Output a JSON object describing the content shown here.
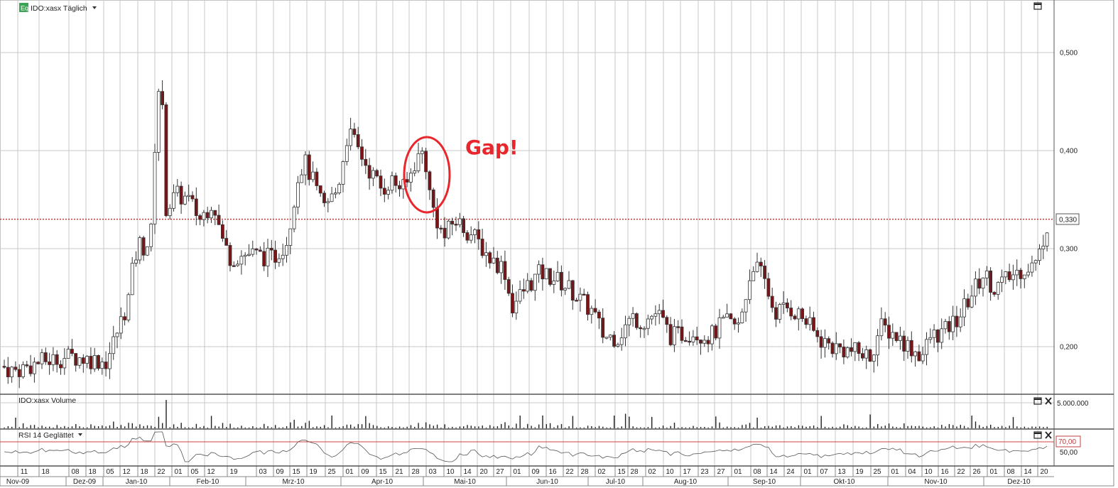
{
  "price_panel": {
    "title": "IDO:xasx Täglich",
    "symbol_badge": "Eq",
    "last_price_label": "0,330",
    "annotation": "Gap!",
    "icons": [
      "chart-type-dropdown-icon",
      "maximize-icon"
    ]
  },
  "volume_panel": {
    "title": "IDO:xasx Volume",
    "icons": [
      "maximize-icon",
      "close-icon"
    ]
  },
  "rsi_panel": {
    "title": "RSI 14 Geglättet",
    "level_label": "70,00",
    "icons": [
      "maximize-icon",
      "close-icon"
    ]
  },
  "colors": {
    "up_candle": "#ffffff",
    "down_candle": "#7a1416",
    "grid": "#c8c8c8",
    "last_price_line": "#c0393b",
    "gap_marker": "#e8262b",
    "rsi_level": "#d04040"
  },
  "chart_data": [
    {
      "type": "candlestick",
      "title": "IDO:xasx Täglich",
      "ylim": [
        0.17,
        0.55
      ],
      "y_ticks": [
        "0,500",
        "0,400",
        "0,300",
        "0,200"
      ],
      "y_tick_values": [
        0.5,
        0.4,
        0.3,
        0.2
      ],
      "last_price": 0.33,
      "x_day_labels": [
        "11",
        "18",
        "08",
        "18",
        "05",
        "12",
        "18",
        "22",
        "01",
        "05",
        "12",
        "19",
        "03",
        "09",
        "15",
        "19",
        "25",
        "01",
        "09",
        "15",
        "21",
        "28",
        "03",
        "10",
        "14",
        "20",
        "27",
        "01",
        "09",
        "16",
        "22",
        "28",
        "02",
        "15",
        "28",
        "02",
        "10",
        "17",
        "23",
        "27",
        "01",
        "08",
        "14",
        "24",
        "01",
        "07",
        "13",
        "19",
        "25",
        "01",
        "04",
        "10",
        "16",
        "22",
        "26",
        "01",
        "08",
        "14",
        "20"
      ],
      "x_month_labels": [
        "Nov-09",
        "Dez-09",
        "Jan-10",
        "Feb-10",
        "Mrz-10",
        "Apr-10",
        "Mai-10",
        "Jun-10",
        "Jul-10",
        "Aug-10",
        "Sep-10",
        "Okt-10",
        "Nov-10",
        "Dez-10"
      ],
      "annotation": "Gap!",
      "grid": true
    },
    {
      "type": "bar",
      "title": "IDO:xasx Volume",
      "y_ticks": [
        "5.000.000"
      ],
      "y_tick_values": [
        5000000
      ]
    },
    {
      "type": "line",
      "title": "RSI 14 Geglättet",
      "level": 70,
      "y_ticks": [
        "70,00",
        "50,00"
      ],
      "y_tick_values": [
        70,
        50
      ],
      "ylim": [
        30,
        90
      ]
    }
  ]
}
